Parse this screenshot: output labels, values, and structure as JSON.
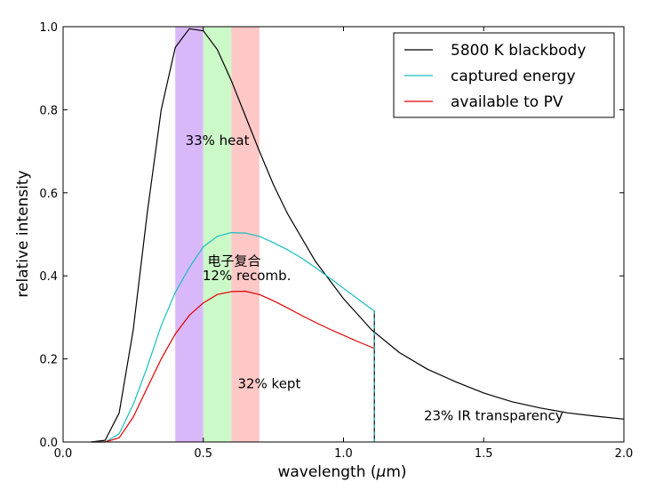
{
  "chart_data": {
    "type": "line",
    "xlabel_main": "wavelength (",
    "xlabel_unit_greek": "μ",
    "xlabel_unit_rest": "m)",
    "ylabel": "relative intensity",
    "xlim": [
      0.0,
      2.0
    ],
    "ylim": [
      0.0,
      1.0
    ],
    "x_ticks": [
      0.0,
      0.5,
      1.0,
      1.5,
      2.0
    ],
    "x_tick_labels": [
      "0.0",
      "0.5",
      "1.0",
      "1.5",
      "2.0"
    ],
    "y_ticks": [
      0.0,
      0.2,
      0.4,
      0.6,
      0.8,
      1.0
    ],
    "y_tick_labels": [
      "0.0",
      "0.2",
      "0.4",
      "0.6",
      "0.8",
      "1.0"
    ],
    "grid": false,
    "legend_position": "top-right",
    "bands": [
      {
        "x0": 0.4,
        "x1": 0.5,
        "color": "#d9b8fa"
      },
      {
        "x0": 0.5,
        "x1": 0.6,
        "color": "#ccf9c8"
      },
      {
        "x0": 0.6,
        "x1": 0.7,
        "color": "#fdc8c6"
      }
    ],
    "series": [
      {
        "name": "5800 K blackbody",
        "color": "#000000",
        "x": [
          0.1,
          0.15,
          0.2,
          0.25,
          0.3,
          0.35,
          0.4,
          0.45,
          0.5,
          0.55,
          0.6,
          0.65,
          0.7,
          0.75,
          0.8,
          0.9,
          1.0,
          1.1,
          1.2,
          1.3,
          1.4,
          1.5,
          1.6,
          1.7,
          1.8,
          1.9,
          2.0
        ],
        "y": [
          0.0,
          0.004,
          0.07,
          0.27,
          0.55,
          0.8,
          0.95,
          0.995,
          0.99,
          0.945,
          0.87,
          0.785,
          0.7,
          0.62,
          0.55,
          0.435,
          0.345,
          0.27,
          0.215,
          0.175,
          0.145,
          0.118,
          0.097,
          0.082,
          0.07,
          0.062,
          0.055
        ]
      },
      {
        "name": "captured energy",
        "color": "#17bfbf",
        "x": [
          0.1,
          0.15,
          0.2,
          0.25,
          0.3,
          0.35,
          0.4,
          0.45,
          0.5,
          0.55,
          0.6,
          0.65,
          0.7,
          0.75,
          0.8,
          0.85,
          0.9,
          0.95,
          1.0,
          1.05,
          1.1,
          1.11
        ],
        "y": [
          0.0,
          0.0,
          0.02,
          0.09,
          0.18,
          0.28,
          0.36,
          0.42,
          0.47,
          0.495,
          0.504,
          0.503,
          0.495,
          0.48,
          0.463,
          0.443,
          0.42,
          0.395,
          0.37,
          0.345,
          0.32,
          0.316
        ]
      },
      {
        "name": "available to PV",
        "color": "#e00000",
        "x": [
          0.1,
          0.15,
          0.2,
          0.25,
          0.3,
          0.35,
          0.4,
          0.45,
          0.5,
          0.55,
          0.6,
          0.65,
          0.7,
          0.75,
          0.8,
          0.85,
          0.9,
          0.95,
          1.0,
          1.05,
          1.1,
          1.11
        ],
        "y": [
          0.0,
          0.0,
          0.01,
          0.06,
          0.13,
          0.2,
          0.26,
          0.305,
          0.335,
          0.355,
          0.362,
          0.363,
          0.355,
          0.34,
          0.323,
          0.305,
          0.288,
          0.272,
          0.257,
          0.242,
          0.228,
          0.225
        ]
      }
    ],
    "cutoff": {
      "x": 1.11,
      "y_top": 0.316,
      "colors": [
        "#000000",
        "#17bfbf"
      ]
    },
    "annotations": [
      {
        "text": "33% heat",
        "x": 0.55,
        "y": 0.715
      },
      {
        "text": "电子复合",
        "x": 0.61,
        "y": 0.425
      },
      {
        "text": "12% recomb.",
        "x": 0.655,
        "y": 0.39
      },
      {
        "text": "32% kept",
        "x": 0.735,
        "y": 0.13
      },
      {
        "text": "23% IR transparency",
        "x": 1.535,
        "y": 0.052
      }
    ]
  }
}
